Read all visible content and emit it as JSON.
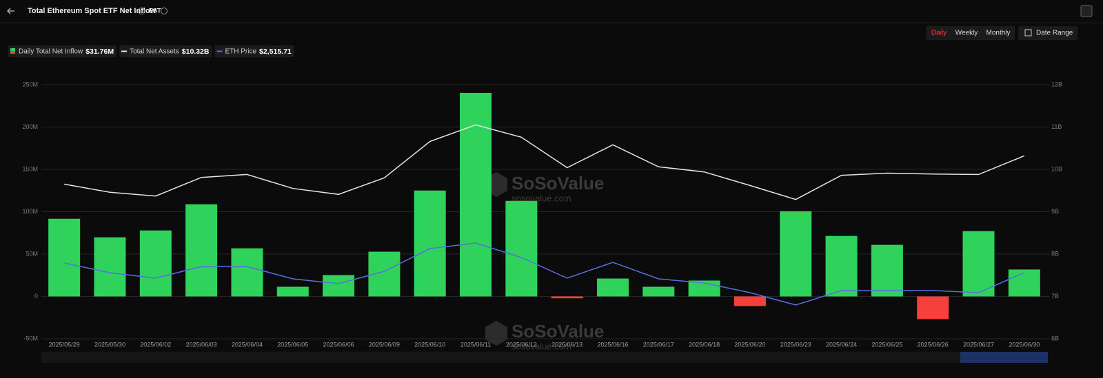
{
  "header": {
    "title": "Total Ethereum Spot ETF Net Inflow",
    "timezone": "EST"
  },
  "controls": {
    "periods": [
      "Daily",
      "Weekly",
      "Monthly"
    ],
    "active_period": 0,
    "date_range": "Date Range"
  },
  "watermark": {
    "brand": "SoSoValue",
    "site": "sosovalue.com"
  },
  "chart_data": {
    "type": "bar",
    "categories": [
      "2025/05/29",
      "2025/05/30",
      "2025/06/02",
      "2025/06/03",
      "2025/06/04",
      "2025/06/05",
      "2025/06/06",
      "2025/06/09",
      "2025/06/10",
      "2025/06/11",
      "2025/06/12",
      "2025/06/13",
      "2025/06/16",
      "2025/06/17",
      "2025/06/18",
      "2025/06/20",
      "2025/06/23",
      "2025/06/24",
      "2025/06/25",
      "2025/06/26",
      "2025/06/27",
      "2025/06/30"
    ],
    "series": [
      {
        "name": "Daily Total Net Inflow",
        "type": "bar",
        "axis": "y",
        "color": "#2fd25a",
        "negative_color": "#f5403c",
        "latest_label": "$31.76M",
        "values": [
          91.7,
          69.8,
          77.9,
          108.8,
          56.8,
          11.4,
          25.2,
          52.8,
          125,
          240.3,
          112.8,
          -2.2,
          21.1,
          11.4,
          18.7,
          -11.4,
          100.6,
          71.4,
          60.9,
          -26.8,
          77.1,
          31.76
        ]
      },
      {
        "name": "Total Net Assets",
        "type": "line",
        "axis": "y2",
        "color": "#e6e6e6",
        "latest_label": "$10.32B",
        "values": [
          9.65,
          9.46,
          9.37,
          9.81,
          9.88,
          9.55,
          9.41,
          9.8,
          10.66,
          11.05,
          10.76,
          10.04,
          10.58,
          10.06,
          9.94,
          9.62,
          9.29,
          9.86,
          9.91,
          9.89,
          9.88,
          10.32
        ]
      },
      {
        "name": "ETH Price",
        "type": "line",
        "axis": "hidden",
        "color": "#5b6ee1",
        "latest_label": "$2,515.71",
        "values": [
          2599,
          2516,
          2469,
          2569,
          2569,
          2463,
          2422,
          2528,
          2723,
          2770,
          2646,
          2469,
          2605,
          2463,
          2428,
          2345,
          2239,
          2363,
          2363,
          2363,
          2345,
          2515.71
        ]
      }
    ],
    "ylim": [
      -50,
      250
    ],
    "yticks": [
      {
        "value": -50,
        "label": "-50M"
      },
      0,
      {
        "value": 50,
        "label": "50M"
      },
      {
        "value": 100,
        "label": "100M"
      },
      {
        "value": 150,
        "label": "150M"
      },
      {
        "value": 200,
        "label": "200M"
      },
      {
        "value": 250,
        "label": "250M"
      }
    ],
    "y2lim": [
      6,
      12
    ],
    "y2ticks": [
      {
        "value": 6,
        "label": "6B"
      },
      {
        "value": 7,
        "label": "7B"
      },
      {
        "value": 8,
        "label": "8B"
      },
      {
        "value": 9,
        "label": "9B"
      },
      {
        "value": 10,
        "label": "10B"
      },
      {
        "value": 11,
        "label": "11B"
      },
      {
        "value": 12,
        "label": "12B"
      }
    ],
    "grid": true
  }
}
